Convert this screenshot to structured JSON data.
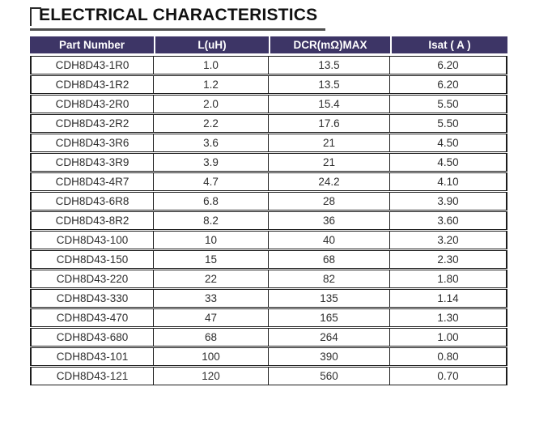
{
  "page": {
    "title": "ELECTRICAL CHARACTERISTICS"
  },
  "table": {
    "columns": [
      {
        "key": "part-number",
        "label": "Part Number"
      },
      {
        "key": "inductance-uh",
        "label": "L(uH)"
      },
      {
        "key": "dcr-mohm-max",
        "label": "DCR(mΩ)MAX"
      },
      {
        "key": "isat-a",
        "label": "Isat ( A )"
      }
    ],
    "rows": [
      [
        "CDH8D43-1R0",
        "1.0",
        "13.5",
        "6.20"
      ],
      [
        "CDH8D43-1R2",
        "1.2",
        "13.5",
        "6.20"
      ],
      [
        "CDH8D43-2R0",
        "2.0",
        "15.4",
        "5.50"
      ],
      [
        "CDH8D43-2R2",
        "2.2",
        "17.6",
        "5.50"
      ],
      [
        "CDH8D43-3R6",
        "3.6",
        "21",
        "4.50"
      ],
      [
        "CDH8D43-3R9",
        "3.9",
        "21",
        "4.50"
      ],
      [
        "CDH8D43-4R7",
        "4.7",
        "24.2",
        "4.10"
      ],
      [
        "CDH8D43-6R8",
        "6.8",
        "28",
        "3.90"
      ],
      [
        "CDH8D43-8R2",
        "8.2",
        "36",
        "3.60"
      ],
      [
        "CDH8D43-100",
        "10",
        "40",
        "3.20"
      ],
      [
        "CDH8D43-150",
        "15",
        "68",
        "2.30"
      ],
      [
        "CDH8D43-220",
        "22",
        "82",
        "1.80"
      ],
      [
        "CDH8D43-330",
        "33",
        "135",
        "1.14"
      ],
      [
        "CDH8D43-470",
        "47",
        "165",
        "1.30"
      ],
      [
        "CDH8D43-680",
        "68",
        "264",
        "1.00"
      ],
      [
        "CDH8D43-101",
        "100",
        "390",
        "0.80"
      ],
      [
        "CDH8D43-121",
        "120",
        "560",
        "0.70"
      ]
    ]
  },
  "colors": {
    "header_bg": "#3D3566",
    "header_text": "#FFFFFF",
    "cell_text": "#2E2E2E",
    "grid_border": "#1C1C1C",
    "title_text": "#111111",
    "title_underline": "#4D4D4D"
  }
}
